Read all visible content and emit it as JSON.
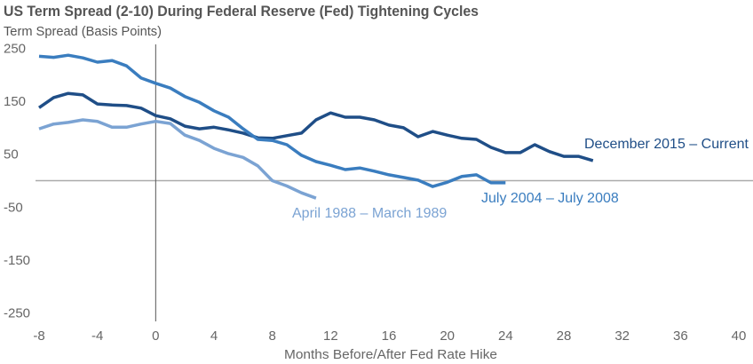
{
  "chart_data": {
    "type": "line",
    "title": "US Term Spread (2-10) During Federal Reserve (Fed) Tightening Cycles",
    "ylabel": "Term Spread (Basis Points)",
    "xlabel": "Months Before/After Fed Rate Hike",
    "xlim": [
      -8,
      40
    ],
    "ylim": [
      -250,
      250
    ],
    "xticks": [
      -8,
      -4,
      0,
      4,
      8,
      12,
      16,
      20,
      24,
      28,
      32,
      36,
      40
    ],
    "yticks": [
      250,
      150,
      50,
      -50,
      -150,
      -250
    ],
    "grid": false,
    "series": [
      {
        "name": "December 2015 – Current",
        "color": "#1f4e87",
        "x": [
          -8,
          -7,
          -6,
          -5,
          -4,
          -3,
          -2,
          -1,
          0,
          1,
          2,
          3,
          4,
          5,
          6,
          7,
          8,
          9,
          10,
          11,
          12,
          13,
          14,
          15,
          16,
          17,
          18,
          19,
          20,
          21,
          22,
          23,
          24,
          25,
          26,
          27,
          28,
          29,
          30
        ],
        "values": [
          138,
          157,
          165,
          162,
          145,
          143,
          142,
          137,
          123,
          117,
          103,
          98,
          101,
          96,
          90,
          81,
          80,
          85,
          90,
          115,
          128,
          120,
          120,
          115,
          105,
          100,
          83,
          93,
          86,
          80,
          78,
          63,
          53,
          53,
          68,
          55,
          46,
          46,
          38
        ]
      },
      {
        "name": "July 2004  – July 2008",
        "color": "#3a7dbf",
        "x": [
          -8,
          -7,
          -6,
          -5,
          -4,
          -3,
          -2,
          -1,
          0,
          1,
          2,
          3,
          4,
          5,
          6,
          7,
          8,
          9,
          10,
          11,
          12,
          13,
          14,
          15,
          16,
          17,
          18,
          19,
          20,
          21,
          22,
          23,
          24
        ],
        "values": [
          235,
          233,
          237,
          232,
          224,
          227,
          217,
          194,
          184,
          175,
          159,
          148,
          132,
          120,
          98,
          78,
          76,
          68,
          48,
          36,
          29,
          21,
          24,
          18,
          11,
          6,
          1,
          -11,
          -3,
          8,
          11,
          -4,
          -4
        ]
      },
      {
        "name": "April 1988 – March 1989",
        "color": "#7ba3d3",
        "x": [
          -8,
          -7,
          -6,
          -5,
          -4,
          -3,
          -2,
          -1,
          0,
          1,
          2,
          3,
          4,
          5,
          6,
          7,
          8,
          9,
          10,
          11
        ],
        "values": [
          98,
          107,
          110,
          115,
          112,
          101,
          101,
          107,
          112,
          108,
          86,
          76,
          61,
          51,
          44,
          28,
          0,
          -10,
          -23,
          -33
        ]
      }
    ]
  }
}
